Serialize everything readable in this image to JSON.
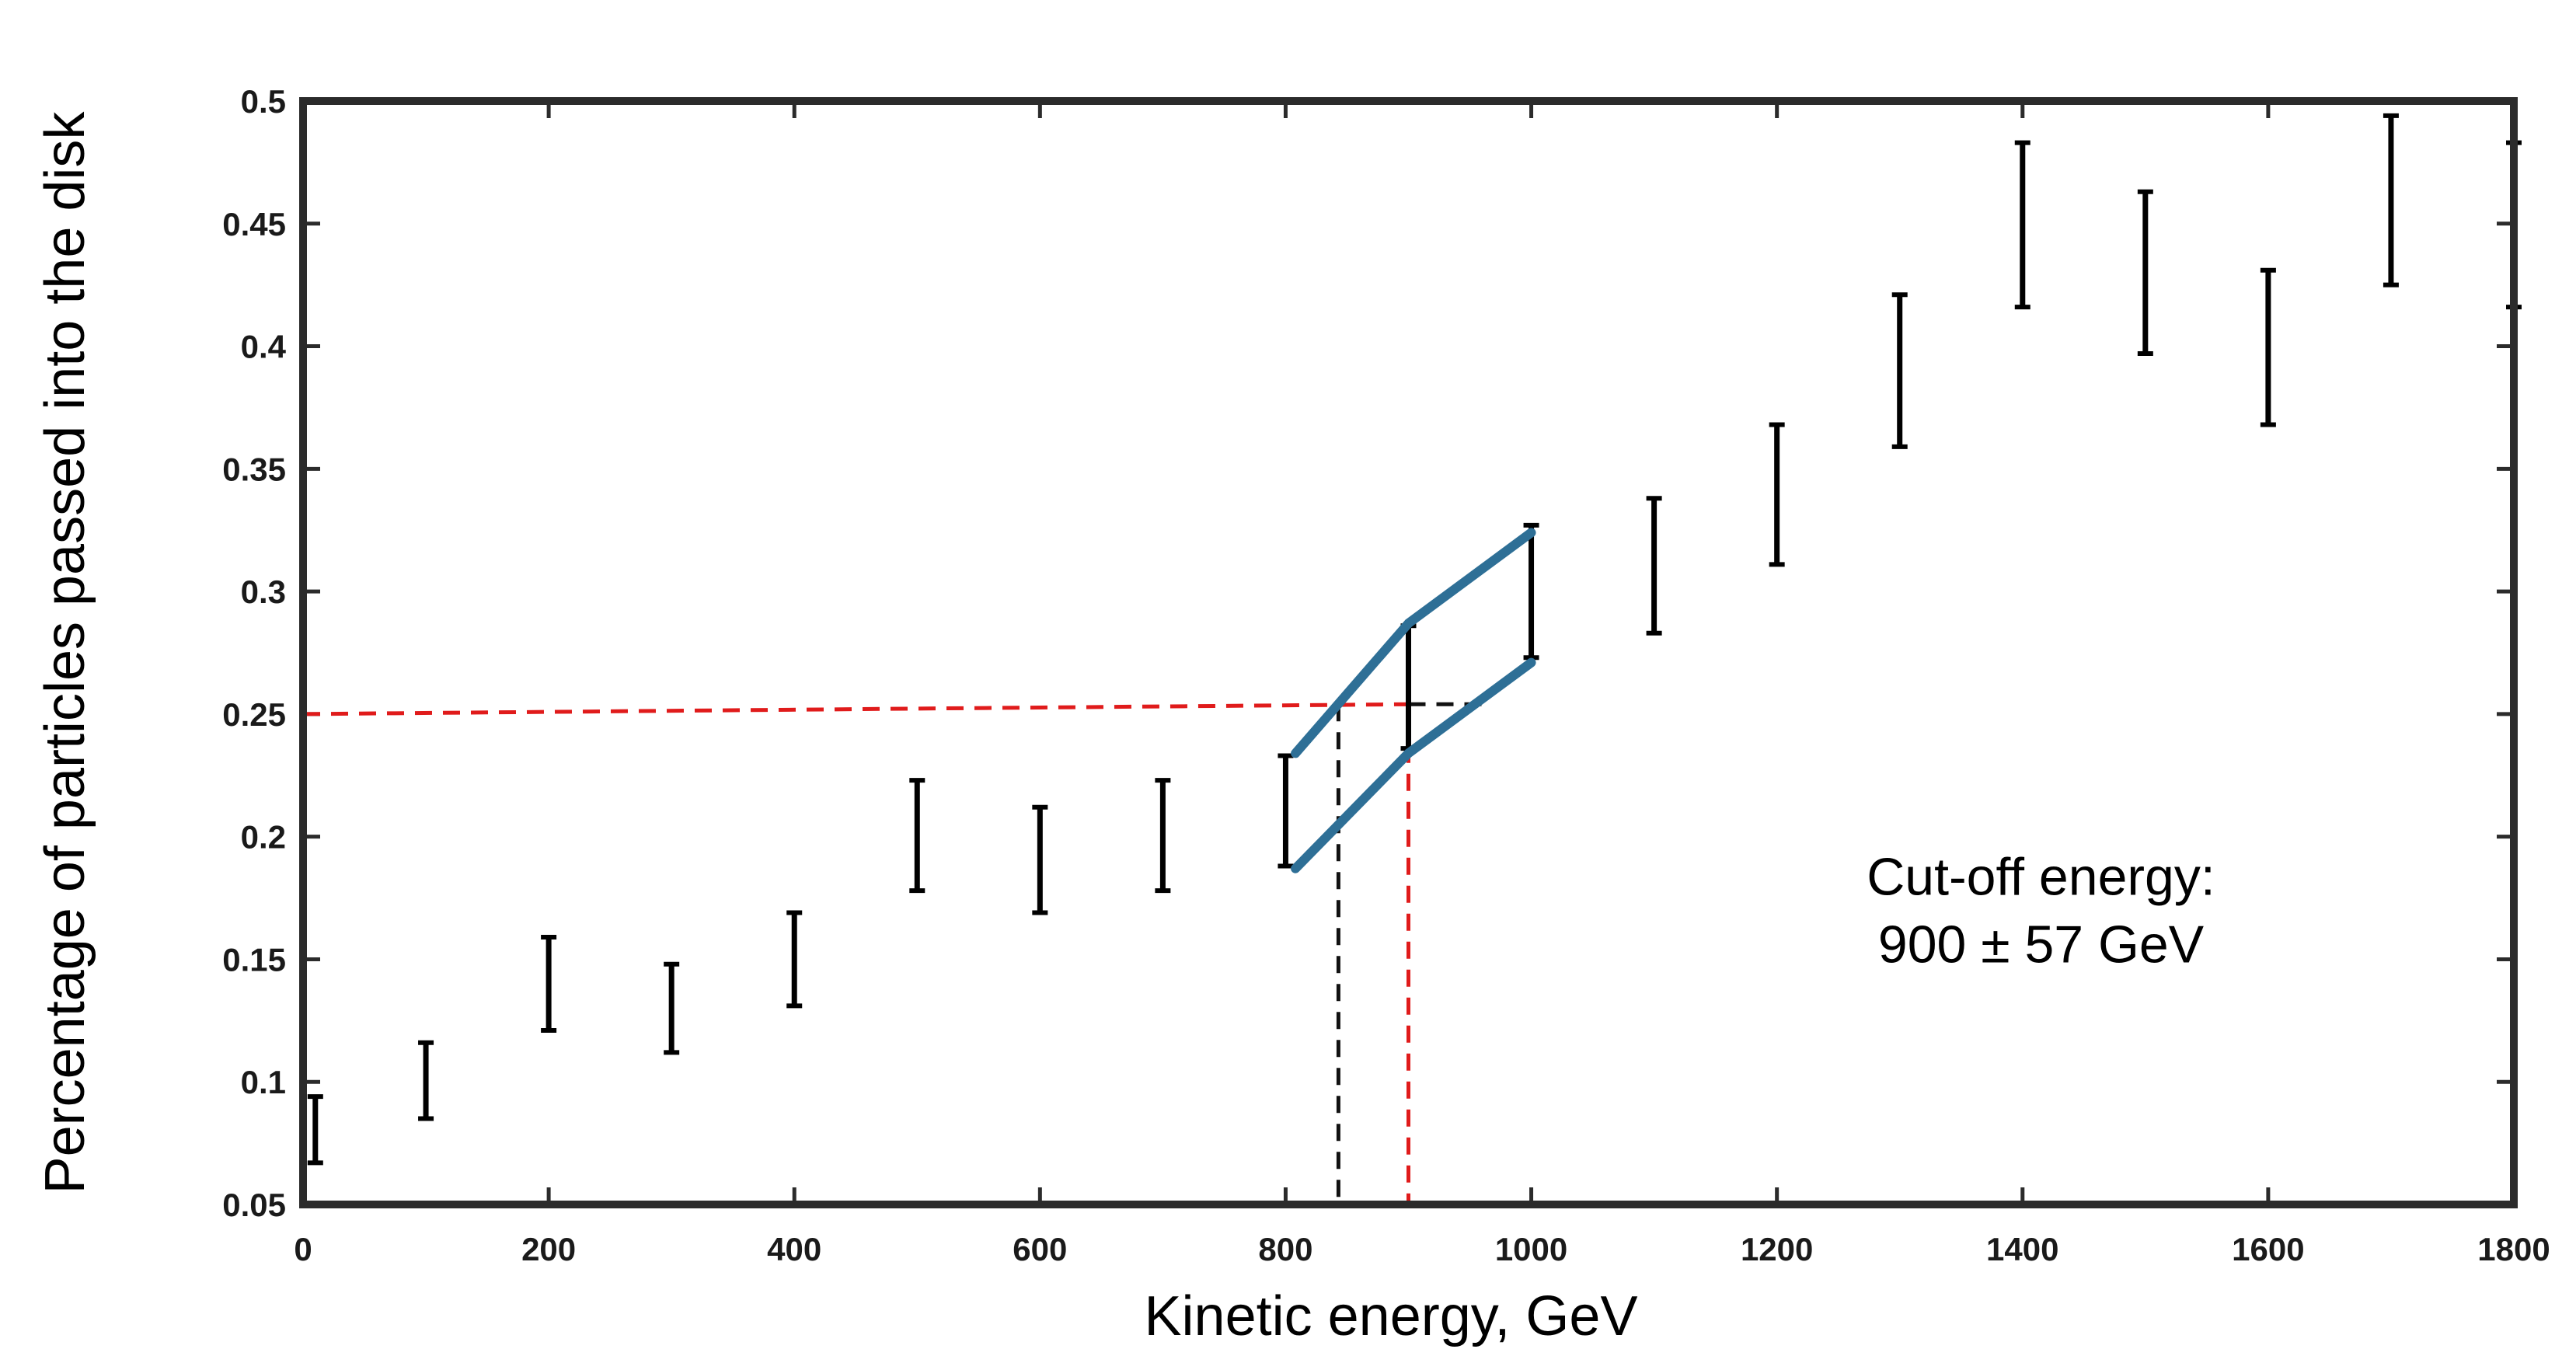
{
  "chart_data": {
    "type": "scatter",
    "title": "",
    "xlabel": "Kinetic energy, GeV",
    "ylabel": "Percentage of particles passed into the disk",
    "xlim": [
      0,
      1800
    ],
    "ylim": [
      0.05,
      0.5
    ],
    "xticks": [
      0,
      200,
      400,
      600,
      800,
      1000,
      1200,
      1400,
      1600,
      1800
    ],
    "yticks": [
      0.05,
      0.1,
      0.15,
      0.2,
      0.25,
      0.3,
      0.35,
      0.4,
      0.45,
      0.5
    ],
    "xtick_labels": [
      "0",
      "200",
      "400",
      "600",
      "800",
      "1000",
      "1200",
      "1400",
      "1600",
      "1800"
    ],
    "ytick_labels": [
      "0.05",
      "0.1",
      "0.15",
      "0.2",
      "0.25",
      "0.3",
      "0.35",
      "0.4",
      "0.45",
      "0.5"
    ],
    "grid": false,
    "series": [
      {
        "kind": "errorbar",
        "color": "#000000",
        "points": [
          {
            "x": 10,
            "ylow": 0.067,
            "yhigh": 0.094
          },
          {
            "x": 100,
            "ylow": 0.085,
            "yhigh": 0.116
          },
          {
            "x": 200,
            "ylow": 0.121,
            "yhigh": 0.159
          },
          {
            "x": 300,
            "ylow": 0.112,
            "yhigh": 0.148
          },
          {
            "x": 400,
            "ylow": 0.131,
            "yhigh": 0.169
          },
          {
            "x": 500,
            "ylow": 0.178,
            "yhigh": 0.223
          },
          {
            "x": 600,
            "ylow": 0.169,
            "yhigh": 0.212
          },
          {
            "x": 700,
            "ylow": 0.178,
            "yhigh": 0.223
          },
          {
            "x": 800,
            "ylow": 0.188,
            "yhigh": 0.233
          },
          {
            "x": 900,
            "ylow": 0.236,
            "yhigh": 0.286
          },
          {
            "x": 1000,
            "ylow": 0.273,
            "yhigh": 0.327
          },
          {
            "x": 1100,
            "ylow": 0.283,
            "yhigh": 0.338
          },
          {
            "x": 1200,
            "ylow": 0.311,
            "yhigh": 0.368
          },
          {
            "x": 1300,
            "ylow": 0.359,
            "yhigh": 0.421
          },
          {
            "x": 1400,
            "ylow": 0.416,
            "yhigh": 0.483
          },
          {
            "x": 1500,
            "ylow": 0.397,
            "yhigh": 0.463
          },
          {
            "x": 1600,
            "ylow": 0.368,
            "yhigh": 0.431
          },
          {
            "x": 1700,
            "ylow": 0.425,
            "yhigh": 0.494
          },
          {
            "x": 1800,
            "ylow": 0.416,
            "yhigh": 0.483
          }
        ]
      }
    ],
    "envelope": {
      "color": "#2e6f96",
      "upper": [
        [
          808,
          0.234
        ],
        [
          900,
          0.287
        ],
        [
          1000,
          0.324
        ]
      ],
      "lower": [
        [
          808,
          0.187
        ],
        [
          900,
          0.234
        ],
        [
          1000,
          0.271
        ]
      ]
    },
    "guides": [
      {
        "color": "#e01b1b",
        "style": "dashed",
        "points": [
          [
            0,
            0.25
          ],
          [
            900,
            0.254
          ],
          [
            900,
            0.05
          ]
        ]
      },
      {
        "color": "#111111",
        "style": "dashed",
        "points": [
          [
            900,
            0.254
          ],
          [
            960,
            0.254
          ]
        ]
      },
      {
        "color": "#111111",
        "style": "dashed",
        "points": [
          [
            843,
            0.254
          ],
          [
            843,
            0.05
          ]
        ]
      }
    ],
    "annotation": {
      "lines": [
        "Cut-off energy:",
        "900 ± 57 GeV"
      ],
      "x": 1415,
      "y": 0.2
    }
  }
}
